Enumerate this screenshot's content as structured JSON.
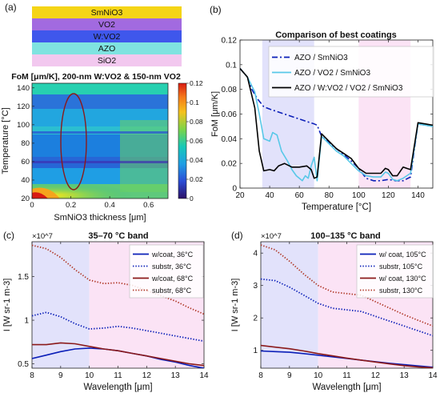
{
  "colors": {
    "smnio3": "#f5d516",
    "vo2": "#a26ae0",
    "wvo2": "#3f57ec",
    "azo": "#7fe3e0",
    "sio2": "#f2c8ef",
    "band_blue": "#e2e2fb",
    "band_pink": "#fbe3f5",
    "dark_blue": "#0b1fb8",
    "light_blue": "#58c8e8",
    "dark_red": "#8b1a1a",
    "red_dotted": "#b13a2a"
  },
  "panel_a": {
    "label": "(a)",
    "stack": [
      "SmNiO3",
      "VO2",
      "W:VO2",
      "AZO",
      "SiO2"
    ],
    "heatmap_title": "FoM [μm/K], 200-nm W:VO2 & 150-nm VO2",
    "xlabel": "SmNiO3 thickness [μm]",
    "ylabel": "Temperature [°C]",
    "xticks": [
      "0",
      "0.2",
      "0.4",
      "0.6"
    ],
    "yticks": [
      "20",
      "40",
      "60",
      "80",
      "100",
      "120",
      "140"
    ],
    "colorbar_ticks": [
      "0",
      "0.02",
      "0.04",
      "0.06",
      "0.08",
      "0.1",
      "0.12"
    ]
  },
  "chart_data": [
    {
      "id": "b",
      "panel_label": "(b)",
      "type": "line",
      "title": "Comparison of best coatings",
      "xlabel": "Temperature [°C]",
      "ylabel": "FoM [μm/K]",
      "xlim": [
        20,
        150
      ],
      "ylim": [
        0,
        0.12
      ],
      "xticks": [
        "20",
        "40",
        "60",
        "80",
        "100",
        "120",
        "140"
      ],
      "yticks": [
        "0",
        "0.02",
        "0.04",
        "0.06",
        "0.08",
        "0.1",
        "0.12"
      ],
      "bands": [
        [
          35,
          70
        ],
        [
          100,
          135
        ]
      ],
      "legend": "top-right",
      "series": [
        {
          "name": "AZO / SmNiO3",
          "style": "dashdot",
          "color": "#0b1fb8",
          "x": [
            20,
            25,
            28,
            32,
            36,
            40,
            45,
            50,
            55,
            60,
            65,
            70,
            72,
            75,
            80,
            85,
            90,
            95,
            100,
            105,
            110,
            115,
            120,
            125,
            130,
            135,
            140,
            145,
            150
          ],
          "y": [
            0.097,
            0.09,
            0.08,
            0.072,
            0.066,
            0.064,
            0.062,
            0.06,
            0.058,
            0.056,
            0.054,
            0.052,
            0.051,
            0.042,
            0.037,
            0.032,
            0.027,
            0.022,
            0.016,
            0.008,
            0.006,
            0.006,
            0.007,
            0.006,
            0.006,
            0.009,
            0.052,
            0.051,
            0.05
          ]
        },
        {
          "name": "AZO / VO2 / SmNiO3",
          "style": "solid",
          "color": "#58c8e8",
          "x": [
            20,
            25,
            30,
            33,
            36,
            40,
            42,
            45,
            48,
            52,
            55,
            58,
            62,
            64,
            66,
            68,
            70,
            72,
            75,
            80,
            85,
            90,
            95,
            100,
            105,
            110,
            115,
            118,
            120,
            123,
            126,
            130,
            135,
            140,
            145,
            150
          ],
          "y": [
            0.097,
            0.09,
            0.078,
            0.06,
            0.04,
            0.038,
            0.045,
            0.043,
            0.03,
            0.022,
            0.015,
            0.01,
            0.006,
            0.01,
            0.008,
            0.018,
            0.025,
            0.006,
            0.042,
            0.036,
            0.03,
            0.026,
            0.02,
            0.014,
            0.01,
            0.009,
            0.009,
            0.013,
            0.012,
            0.007,
            0.006,
            0.008,
            0.012,
            0.052,
            0.051,
            0.05
          ]
        },
        {
          "name": "AZO / W:VO2 / VO2 / SmNiO3",
          "style": "solid",
          "color": "#000000",
          "x": [
            20,
            25,
            30,
            33,
            36,
            40,
            43,
            46,
            50,
            55,
            60,
            65,
            68,
            70,
            72,
            75,
            80,
            85,
            90,
            95,
            100,
            105,
            110,
            115,
            118,
            120,
            123,
            126,
            130,
            135,
            140,
            145,
            150
          ],
          "y": [
            0.097,
            0.09,
            0.065,
            0.03,
            0.014,
            0.015,
            0.014,
            0.018,
            0.02,
            0.017,
            0.017,
            0.018,
            0.015,
            0.008,
            0.009,
            0.044,
            0.038,
            0.032,
            0.028,
            0.024,
            0.016,
            0.012,
            0.012,
            0.012,
            0.016,
            0.015,
            0.01,
            0.01,
            0.017,
            0.015,
            0.053,
            0.052,
            0.051
          ]
        }
      ]
    },
    {
      "id": "c",
      "panel_label": "(c)",
      "type": "line",
      "title": "35–70 °C band",
      "xlabel": "Wavelength [μm]",
      "ylabel": "I [W sr-1 m-3]",
      "scale_exponent": "×10^7",
      "xlim": [
        8,
        14
      ],
      "ylim": [
        0.45,
        1.9
      ],
      "xticks": [
        "8",
        "9",
        "10",
        "11",
        "12",
        "13",
        "14"
      ],
      "yticks": [
        "0.5",
        "1",
        "1.5"
      ],
      "bands": [
        [
          8,
          10
        ],
        [
          10,
          14
        ]
      ],
      "legend": "top-right",
      "series": [
        {
          "name": "w/coat, 36°C",
          "style": "solid",
          "color": "#0b1fb8",
          "x": [
            8,
            8.5,
            9,
            9.5,
            10,
            10.5,
            11,
            11.5,
            12,
            12.5,
            13,
            13.5,
            14
          ],
          "y": [
            0.56,
            0.6,
            0.64,
            0.67,
            0.68,
            0.67,
            0.65,
            0.62,
            0.59,
            0.55,
            0.52,
            0.48,
            0.45
          ]
        },
        {
          "name": "substr, 36°C",
          "style": "dotted",
          "color": "#0b1fb8",
          "x": [
            8,
            8.5,
            9,
            9.5,
            10,
            10.5,
            11,
            11.5,
            12,
            12.5,
            13,
            13.5,
            14
          ],
          "y": [
            1.05,
            1.09,
            1.04,
            0.96,
            0.9,
            0.91,
            0.93,
            0.91,
            0.88,
            0.85,
            0.82,
            0.79,
            0.76
          ]
        },
        {
          "name": "w/coat, 68°C",
          "style": "solid",
          "color": "#8b1a1a",
          "x": [
            8,
            8.5,
            9,
            9.5,
            10,
            10.5,
            11,
            11.5,
            12,
            12.5,
            13,
            13.5,
            14
          ],
          "y": [
            0.72,
            0.72,
            0.74,
            0.73,
            0.7,
            0.67,
            0.65,
            0.62,
            0.59,
            0.56,
            0.53,
            0.5,
            0.48
          ]
        },
        {
          "name": "substr, 68°C",
          "style": "dotted",
          "color": "#b13a2a",
          "x": [
            8,
            8.5,
            9,
            9.5,
            10,
            10.5,
            11,
            11.5,
            12,
            12.5,
            13,
            13.5,
            14
          ],
          "y": [
            1.86,
            1.82,
            1.72,
            1.58,
            1.46,
            1.42,
            1.43,
            1.4,
            1.34,
            1.28,
            1.22,
            1.14,
            1.07
          ]
        }
      ]
    },
    {
      "id": "d",
      "panel_label": "(d)",
      "type": "line",
      "title": "100–135 °C band",
      "xlabel": "Wavelength [μm]",
      "ylabel": "I [W sr-1 m-3]",
      "scale_exponent": "×10^7",
      "xlim": [
        8,
        14
      ],
      "ylim": [
        0.45,
        4.35
      ],
      "xticks": [
        "8",
        "9",
        "10",
        "11",
        "12",
        "13",
        "14"
      ],
      "yticks": [
        "1",
        "2",
        "3",
        "4"
      ],
      "bands": [
        [
          8,
          10
        ],
        [
          10,
          14
        ]
      ],
      "legend": "top-right",
      "series": [
        {
          "name": "w/ coat, 105°C",
          "style": "solid",
          "color": "#0b1fb8",
          "x": [
            8,
            8.5,
            9,
            9.5,
            10,
            10.5,
            11,
            11.5,
            12,
            12.5,
            13,
            13.5,
            14
          ],
          "y": [
            0.98,
            0.96,
            0.94,
            0.9,
            0.85,
            0.8,
            0.75,
            0.7,
            0.65,
            0.6,
            0.56,
            0.52,
            0.48
          ]
        },
        {
          "name": "substr, 105°C",
          "style": "dotted",
          "color": "#0b1fb8",
          "x": [
            8,
            8.5,
            9,
            9.5,
            10,
            10.5,
            11,
            11.5,
            12,
            12.5,
            13,
            13.5,
            14
          ],
          "y": [
            3.2,
            3.15,
            2.95,
            2.7,
            2.45,
            2.3,
            2.25,
            2.2,
            2.05,
            1.9,
            1.75,
            1.6,
            1.45
          ]
        },
        {
          "name": "w/ coat, 130°C",
          "style": "solid",
          "color": "#8b1a1a",
          "x": [
            8,
            8.5,
            9,
            9.5,
            10,
            10.5,
            11,
            11.5,
            12,
            12.5,
            13,
            13.5,
            14
          ],
          "y": [
            1.15,
            1.1,
            1.05,
            0.98,
            0.9,
            0.83,
            0.76,
            0.7,
            0.64,
            0.58,
            0.53,
            0.49,
            0.46
          ]
        },
        {
          "name": "substr, 130°C",
          "style": "dotted",
          "color": "#b13a2a",
          "x": [
            8,
            8.5,
            9,
            9.5,
            10,
            10.5,
            11,
            11.5,
            12,
            12.5,
            13,
            13.5,
            14
          ],
          "y": [
            4.25,
            4.1,
            3.75,
            3.35,
            3.0,
            2.8,
            2.75,
            2.7,
            2.5,
            2.3,
            2.1,
            1.92,
            1.75
          ]
        }
      ]
    }
  ]
}
